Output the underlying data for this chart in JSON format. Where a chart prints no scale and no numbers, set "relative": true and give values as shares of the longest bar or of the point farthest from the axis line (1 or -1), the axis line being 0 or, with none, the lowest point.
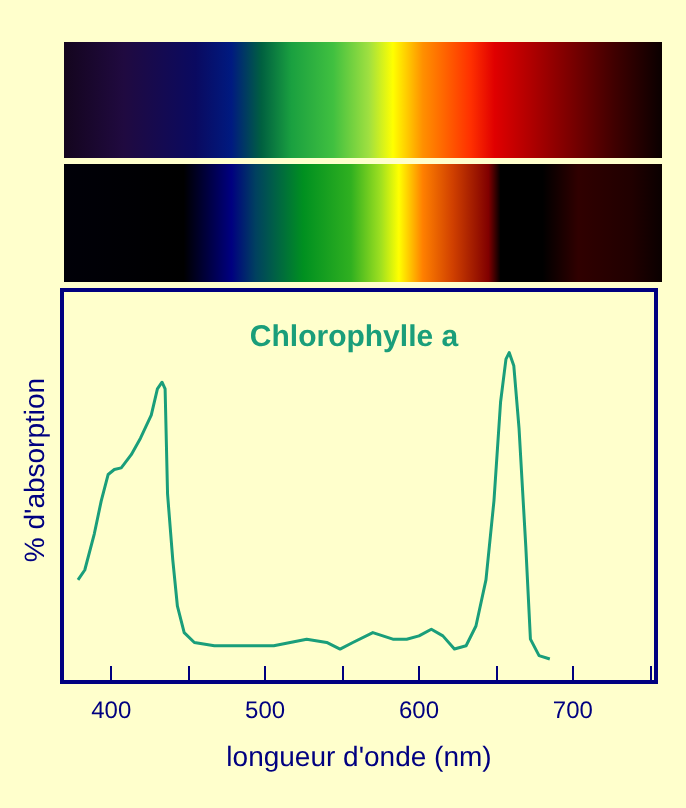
{
  "chart_data": {
    "type": "line",
    "title": "Chlorophylle a",
    "xlabel": "longueur d'onde (nm)",
    "ylabel": "% d'absorption",
    "relative": true,
    "tick_labels": "x",
    "marker": "none",
    "xlim": [
      368,
      754
    ],
    "xticks": [
      400,
      {
        "value": 450,
        "label": null
      },
      500,
      {
        "value": 550,
        "label": null
      },
      600,
      {
        "value": 650,
        "label": null
      },
      700,
      {
        "value": 750,
        "label": null
      }
    ],
    "series": [
      {
        "color": "#1a9e7a",
        "x": [
          378.4,
          382.8,
          389,
          393.5,
          398,
          402,
          406.5,
          413,
          419,
          426,
          430,
          433,
          435,
          436.6,
          440,
          443,
          447.4,
          454,
          467,
          484,
          505.6,
          527,
          540,
          548.7,
          557,
          570,
          583,
          592,
          600,
          608,
          615.5,
          623,
          630.6,
          637,
          643.5,
          648.7,
          653,
          656.5,
          658.6,
          661.6,
          665,
          669.4,
          672.4,
          678,
          685
        ],
        "values": [
          0.31,
          0.34,
          0.45,
          0.55,
          0.63,
          0.645,
          0.65,
          0.69,
          0.74,
          0.81,
          0.89,
          0.91,
          0.89,
          0.57,
          0.37,
          0.23,
          0.15,
          0.12,
          0.11,
          0.11,
          0.11,
          0.13,
          0.12,
          0.1,
          0.12,
          0.15,
          0.13,
          0.13,
          0.14,
          0.16,
          0.14,
          0.1,
          0.11,
          0.17,
          0.31,
          0.55,
          0.85,
          0.98,
          1,
          0.96,
          0.77,
          0.41,
          0.13,
          0.08,
          0.07
        ]
      }
    ]
  }
}
